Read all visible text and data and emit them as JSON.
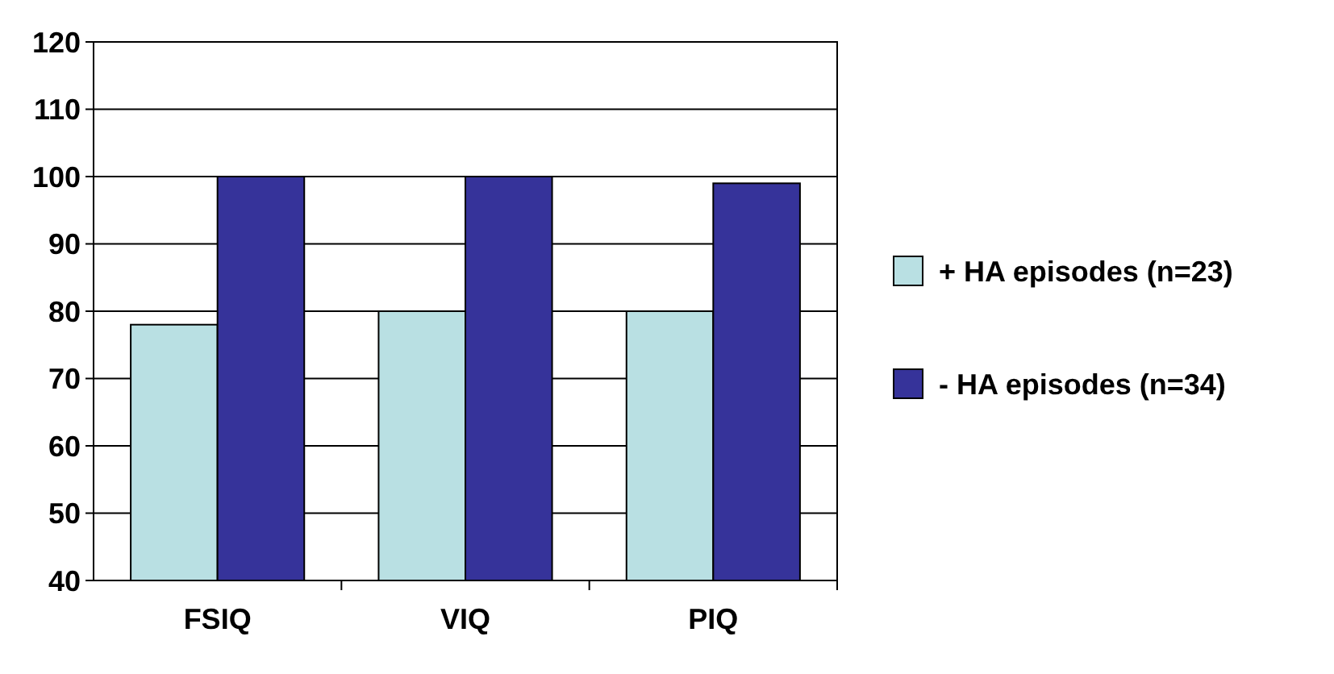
{
  "chart_data": {
    "type": "bar",
    "categories": [
      "FSIQ",
      "VIQ",
      "PIQ"
    ],
    "series": [
      {
        "name": "+ HA episodes (n=23)",
        "color": "#b9e0e3",
        "values": [
          78,
          80,
          80
        ]
      },
      {
        "name": "- HA episodes (n=34)",
        "color": "#36339a",
        "values": [
          100,
          100,
          99
        ]
      }
    ],
    "ylim": [
      40,
      120
    ],
    "yticks": [
      40,
      50,
      60,
      70,
      80,
      90,
      100,
      110,
      120
    ],
    "grid": "y",
    "legend": "right"
  }
}
